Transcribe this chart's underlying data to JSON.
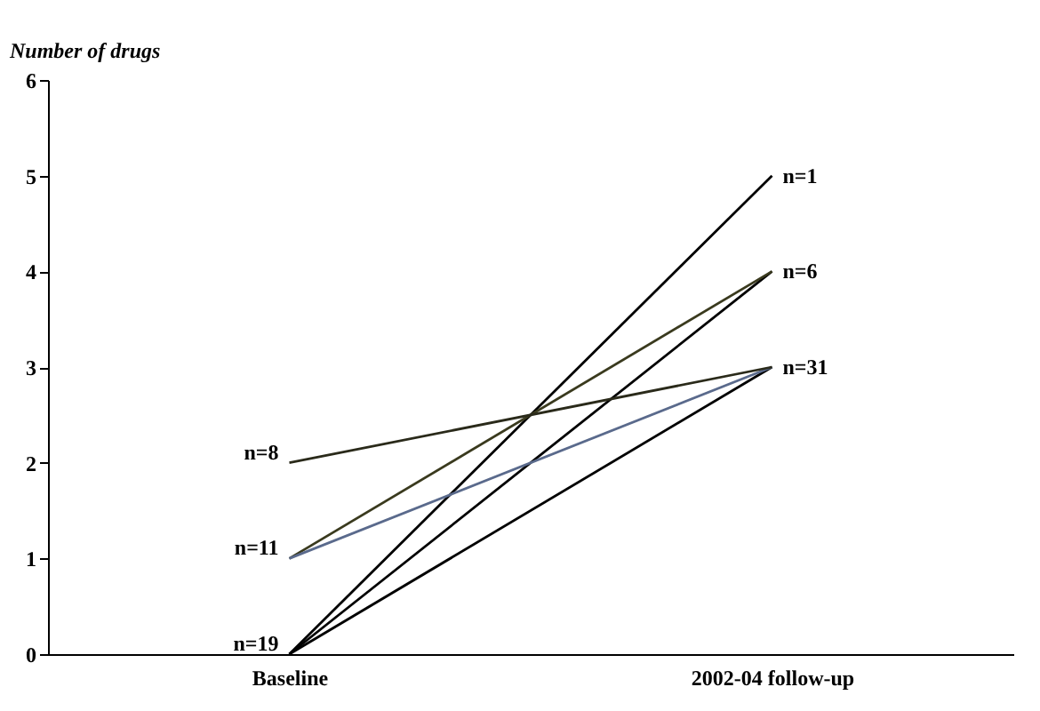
{
  "chart_data": {
    "type": "line",
    "ylabel": "Number of drugs",
    "categories": [
      "Baseline",
      "2002-04 follow-up"
    ],
    "ylim": [
      0,
      6
    ],
    "yticks": [
      0,
      1,
      2,
      3,
      4,
      5,
      6
    ],
    "grid": false,
    "legend": false,
    "marker": "none",
    "line_style": "solid",
    "series": [
      {
        "color": "#000000",
        "values": [
          0,
          5
        ]
      },
      {
        "color": "#000000",
        "values": [
          0,
          4
        ]
      },
      {
        "color": "#000000",
        "values": [
          0,
          3
        ]
      },
      {
        "color": "#3a3a1e",
        "values": [
          1,
          4
        ]
      },
      {
        "color": "#5a6a8c",
        "values": [
          1,
          3
        ]
      },
      {
        "color": "#2a2a1a",
        "values": [
          2,
          3
        ]
      }
    ],
    "annotations": [
      {
        "text": "n=8",
        "x": "Baseline",
        "y": 2
      },
      {
        "text": "n=11",
        "x": "Baseline",
        "y": 1
      },
      {
        "text": "n=19",
        "x": "Baseline",
        "y": 0
      },
      {
        "text": "n=1",
        "x": "2002-04 follow-up",
        "y": 5
      },
      {
        "text": "n=6",
        "x": "2002-04 follow-up",
        "y": 4
      },
      {
        "text": "n=31",
        "x": "2002-04 follow-up",
        "y": 3
      }
    ]
  }
}
